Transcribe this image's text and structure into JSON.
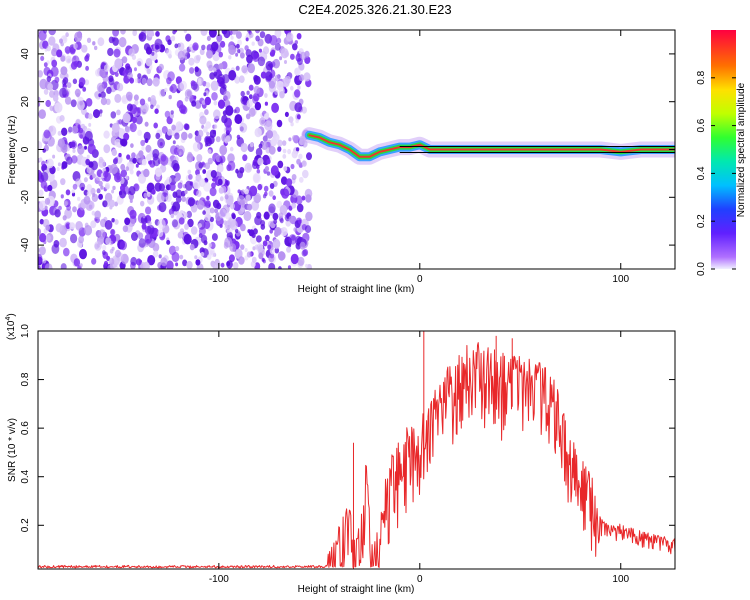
{
  "title": "C2E4.2025.326.21.30.E23",
  "colors": {
    "snr_line": "#e8282a",
    "noise_dot": "#7a2df0",
    "track_core": "#e83a2a",
    "track_mid": "#22dd44",
    "track_outer": "#3aa0ff",
    "track_halo": "#c9a8f5"
  },
  "chart_data": [
    {
      "type": "heatmap",
      "name": "spectrogram",
      "xlabel": "Height of straight line (km)",
      "ylabel": "Frequency (Hz)",
      "xlim": [
        -190,
        127
      ],
      "ylim": [
        -50,
        50
      ],
      "xticks": [
        -100,
        0,
        100
      ],
      "yticks": [
        -40,
        -20,
        0,
        20,
        40
      ],
      "noise_region_x": [
        -190,
        -55
      ],
      "ridge": [
        [
          -55,
          6
        ],
        [
          -50,
          5
        ],
        [
          -45,
          3
        ],
        [
          -40,
          2
        ],
        [
          -35,
          0
        ],
        [
          -30,
          -3
        ],
        [
          -25,
          -3
        ],
        [
          -20,
          -1
        ],
        [
          -15,
          0
        ],
        [
          -10,
          1
        ],
        [
          -5,
          1
        ],
        [
          0,
          2
        ],
        [
          5,
          0
        ],
        [
          10,
          0
        ],
        [
          20,
          0
        ],
        [
          40,
          0
        ],
        [
          60,
          0
        ],
        [
          80,
          0
        ],
        [
          90,
          0
        ],
        [
          100,
          -1
        ],
        [
          110,
          0
        ],
        [
          127,
          0
        ]
      ],
      "colorbar": {
        "label": "Normalized spectral amplitude",
        "range": [
          0,
          1
        ],
        "ticks": [
          "0.0",
          "0.2",
          "0.4",
          "0.6",
          "0.8"
        ]
      }
    },
    {
      "type": "line",
      "name": "snr",
      "xlabel": "Height of straight line (km)",
      "ylabel": "SNR (10 * v/v)",
      "y_multiplier": "(x10",
      "y_multiplier_exp": "4",
      "y_multiplier_close": ")",
      "xlim": [
        -190,
        127
      ],
      "ylim": [
        0.02,
        1.0
      ],
      "xticks": [
        -100,
        0,
        100
      ],
      "yticks": [
        "0.2",
        "0.4",
        "0.6",
        "0.8",
        "1.0"
      ],
      "envelope": [
        [
          -190,
          0.03
        ],
        [
          -50,
          0.03
        ],
        [
          -47,
          0.05
        ],
        [
          -43,
          0.13
        ],
        [
          -40,
          0.2
        ],
        [
          -35,
          0.28
        ],
        [
          -32,
          0.12
        ],
        [
          -30,
          0.2
        ],
        [
          -26,
          0.5
        ],
        [
          -23,
          0.09
        ],
        [
          -20,
          0.25
        ],
        [
          -15,
          0.45
        ],
        [
          -10,
          0.55
        ],
        [
          -5,
          0.58
        ],
        [
          0,
          0.6
        ],
        [
          5,
          0.7
        ],
        [
          10,
          0.78
        ],
        [
          15,
          0.85
        ],
        [
          20,
          0.9
        ],
        [
          30,
          0.92
        ],
        [
          40,
          0.9
        ],
        [
          50,
          0.88
        ],
        [
          60,
          0.85
        ],
        [
          65,
          0.82
        ],
        [
          70,
          0.7
        ],
        [
          75,
          0.55
        ],
        [
          80,
          0.47
        ],
        [
          85,
          0.4
        ],
        [
          88,
          0.3
        ],
        [
          90,
          0.22
        ],
        [
          95,
          0.2
        ],
        [
          100,
          0.2
        ],
        [
          110,
          0.17
        ],
        [
          120,
          0.15
        ],
        [
          127,
          0.14
        ]
      ],
      "spikes": [
        [
          -33,
          0.54
        ],
        [
          2,
          1.0
        ],
        [
          38,
          0.98
        ],
        [
          46,
          0.97
        ]
      ]
    }
  ]
}
